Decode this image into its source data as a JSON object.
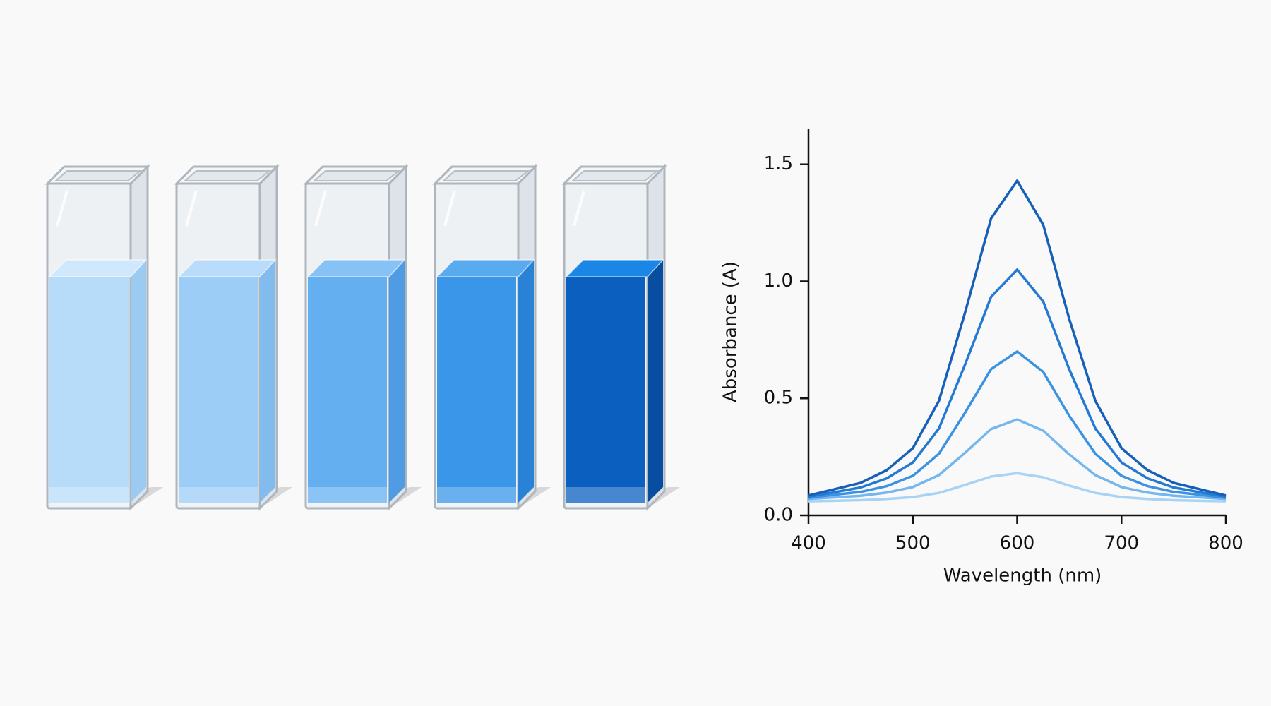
{
  "chart_data": {
    "type": "line",
    "x_label": "Wavelength (nm)",
    "y_label": "Absorbance (A)",
    "x": [
      400,
      425,
      450,
      475,
      500,
      525,
      550,
      575,
      600,
      625,
      650,
      675,
      700,
      725,
      750,
      775,
      800
    ],
    "series": [
      {
        "color": "#a9d3f5",
        "values": [
          0.06,
          0.062,
          0.065,
          0.07,
          0.078,
          0.096,
          0.13,
          0.166,
          0.18,
          0.163,
          0.127,
          0.096,
          0.078,
          0.07,
          0.065,
          0.062,
          0.06
        ]
      },
      {
        "color": "#74b6ee",
        "values": [
          0.07,
          0.077,
          0.084,
          0.097,
          0.121,
          0.172,
          0.267,
          0.369,
          0.41,
          0.362,
          0.26,
          0.172,
          0.121,
          0.097,
          0.084,
          0.077,
          0.07
        ]
      },
      {
        "color": "#3a93e2",
        "values": [
          0.075,
          0.088,
          0.1,
          0.125,
          0.169,
          0.263,
          0.438,
          0.625,
          0.7,
          0.613,
          0.425,
          0.263,
          0.169,
          0.125,
          0.1,
          0.088,
          0.075
        ]
      },
      {
        "color": "#2479d2",
        "values": [
          0.08,
          0.099,
          0.119,
          0.158,
          0.226,
          0.371,
          0.643,
          0.934,
          1.05,
          0.914,
          0.623,
          0.371,
          0.226,
          0.158,
          0.119,
          0.099,
          0.08
        ]
      },
      {
        "color": "#1660b8",
        "values": [
          0.085,
          0.112,
          0.139,
          0.193,
          0.287,
          0.489,
          0.865,
          1.269,
          1.43,
          1.242,
          0.838,
          0.489,
          0.287,
          0.193,
          0.139,
          0.112,
          0.085
        ]
      }
    ],
    "xlim": [
      400,
      800
    ],
    "xticks": [
      400,
      500,
      600,
      700,
      800
    ],
    "ylim": [
      0,
      1.65
    ],
    "yticks": [
      {
        "value": 0,
        "label": "0.0"
      },
      {
        "value": 0.5,
        "label": "0.5"
      },
      {
        "value": 1,
        "label": "1.0"
      },
      {
        "value": 1.5,
        "label": "1.5"
      }
    ],
    "grid": false
  }
}
